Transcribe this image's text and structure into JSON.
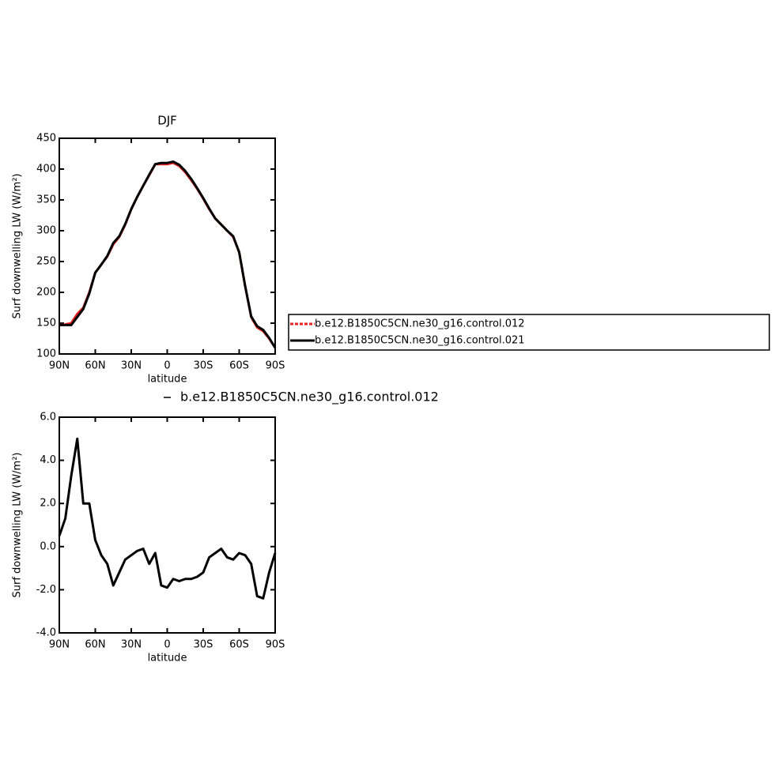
{
  "chart_data": [
    {
      "type": "line",
      "title": "DJF",
      "xlabel": "latitude",
      "ylabel": "Surf downwelling LW (W/m²)",
      "x": [
        90,
        85,
        80,
        75,
        70,
        65,
        60,
        55,
        50,
        45,
        40,
        35,
        30,
        25,
        20,
        15,
        10,
        5,
        0,
        -5,
        -10,
        -15,
        -20,
        -25,
        -30,
        -35,
        -40,
        -45,
        -50,
        -55,
        -60,
        -65,
        -70,
        -75,
        -80,
        -85,
        -90
      ],
      "series": [
        {
          "name": "b.e12.B1850C5CN.ne30_g16.control.012",
          "color": "#e8231f",
          "values": [
            147,
            148,
            150,
            165,
            175,
            200,
            232,
            245,
            258,
            278,
            290,
            310,
            335,
            355,
            373,
            390,
            408,
            408,
            408,
            410,
            405,
            395,
            382,
            368,
            352,
            335,
            320,
            310,
            300,
            290,
            265,
            210,
            160,
            143,
            137,
            125,
            110
          ]
        },
        {
          "name": "b.e12.B1850C5CN.ne30_g16.control.021",
          "color": "#000000",
          "values": [
            147,
            147,
            147,
            160,
            173,
            198,
            232,
            245,
            259,
            280,
            291,
            311,
            335,
            355,
            373,
            391,
            408,
            410,
            410,
            412,
            407,
            397,
            384,
            369,
            353,
            336,
            320,
            310,
            300,
            291,
            265,
            210,
            161,
            145,
            139,
            126,
            110
          ]
        }
      ],
      "xlim": [
        90,
        -90
      ],
      "xticks": [
        {
          "value": 90,
          "label": "90N"
        },
        {
          "value": 60,
          "label": "60N"
        },
        {
          "value": 30,
          "label": "30N"
        },
        0,
        {
          "value": -30,
          "label": "30S"
        },
        {
          "value": -60,
          "label": "60S"
        },
        {
          "value": -90,
          "label": "90S"
        }
      ],
      "ylim": [
        100,
        450
      ],
      "yticks": [
        100,
        150,
        200,
        250,
        300,
        350,
        400,
        450
      ]
    },
    {
      "type": "line",
      "xlabel": "latitude",
      "ylabel": "Surf downwelling LW (W/m²)",
      "x": [
        90,
        85,
        80,
        75,
        70,
        65,
        60,
        55,
        50,
        45,
        40,
        35,
        30,
        25,
        20,
        15,
        10,
        5,
        0,
        -5,
        -10,
        -15,
        -20,
        -25,
        -30,
        -35,
        -40,
        -45,
        -50,
        -55,
        -60,
        -65,
        -70,
        -75,
        -80,
        -85,
        -90
      ],
      "series": [
        {
          "name": "b.e12.B1850C5CN.ne30_g16.control.012",
          "color": "#000000",
          "values": [
            0.5,
            1.3,
            3.3,
            5.0,
            2.0,
            2.0,
            0.3,
            -0.4,
            -0.8,
            -1.8,
            -1.2,
            -0.6,
            -0.4,
            -0.2,
            -0.1,
            -0.8,
            -0.3,
            -1.8,
            -1.9,
            -1.5,
            -1.6,
            -1.5,
            -1.5,
            -1.4,
            -1.2,
            -0.5,
            -0.3,
            -0.1,
            -0.5,
            -0.6,
            -0.3,
            -0.4,
            -0.8,
            -2.3,
            -2.4,
            -1.2,
            -0.3
          ]
        }
      ],
      "xlim": [
        90,
        -90
      ],
      "xticks": [
        {
          "value": 90,
          "label": "90N"
        },
        {
          "value": 60,
          "label": "60N"
        },
        {
          "value": 30,
          "label": "30N"
        },
        0,
        {
          "value": -30,
          "label": "30S"
        },
        {
          "value": -60,
          "label": "60S"
        },
        {
          "value": -90,
          "label": "90S"
        }
      ],
      "ylim": [
        -4,
        6
      ],
      "yticks": [
        {
          "value": -4,
          "label": "-4.0"
        },
        {
          "value": -2,
          "label": "-2.0"
        },
        {
          "value": 0,
          "label": "0.0"
        },
        {
          "value": 2,
          "label": "2.0"
        },
        {
          "value": 4,
          "label": "4.0"
        },
        {
          "value": 6,
          "label": "6.0"
        }
      ]
    }
  ]
}
